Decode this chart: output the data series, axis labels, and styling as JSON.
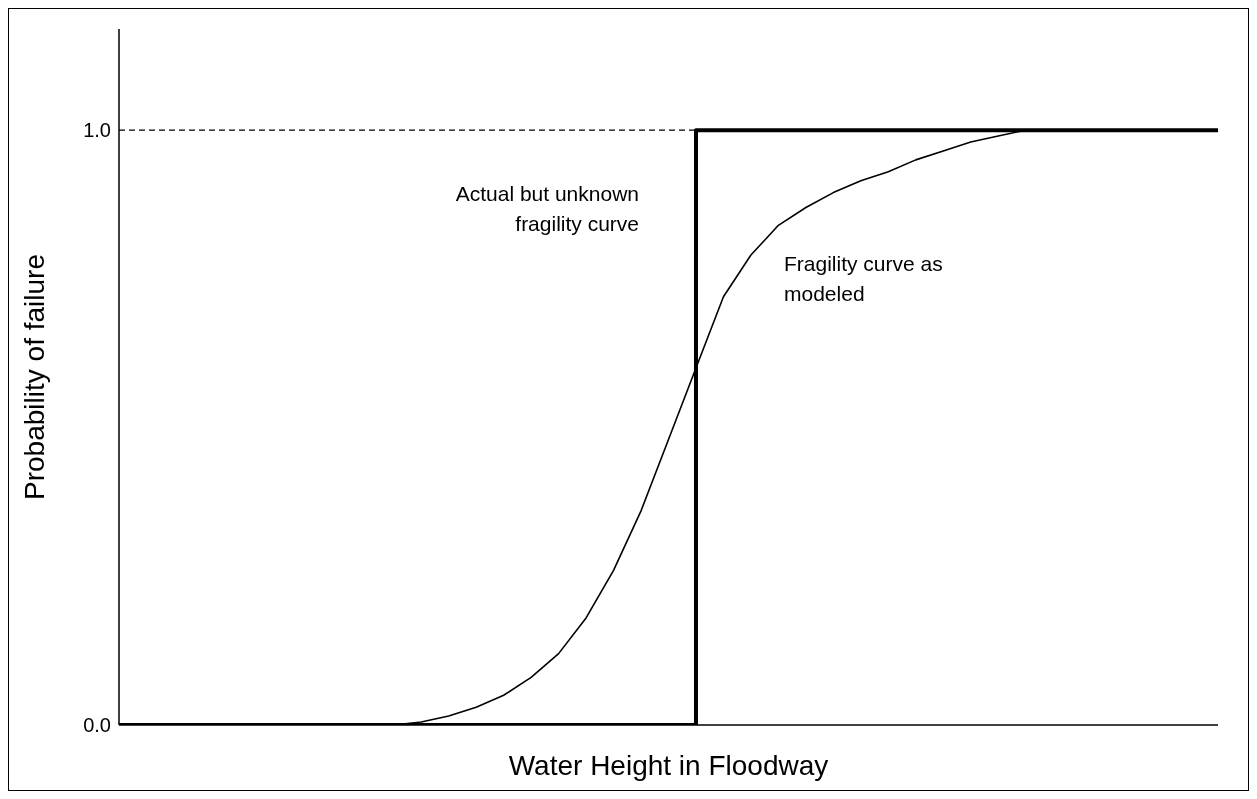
{
  "chart_data": {
    "type": "line",
    "xlabel": "Water Height in Floodway",
    "ylabel": "Probability of failure",
    "categories": [
      null,
      null,
      null,
      null,
      null,
      null,
      null,
      null,
      null,
      null,
      null,
      null,
      null,
      null,
      null,
      null,
      null,
      null,
      null,
      null,
      null,
      null,
      null,
      null,
      null,
      null,
      null,
      null,
      null,
      null,
      null,
      null,
      null,
      null,
      null,
      null,
      null,
      null,
      null,
      null,
      null
    ],
    "series": [
      {
        "type": "step",
        "color": "#000000",
        "values": [
          0,
          0,
          0,
          0,
          0,
          0,
          0,
          0,
          0,
          0,
          0,
          0,
          0,
          0,
          0,
          0,
          0,
          0,
          0,
          0,
          0,
          1,
          1,
          1,
          1,
          1,
          1,
          1,
          1,
          1,
          1,
          1,
          1,
          1,
          1,
          1,
          1,
          1,
          1,
          1,
          1
        ]
      },
      {
        "type": "line",
        "color": "#000000",
        "values": [
          null,
          null,
          null,
          null,
          null,
          null,
          null,
          null,
          null,
          null,
          0,
          0.005,
          0.015,
          0.03,
          0.05,
          0.08,
          0.12,
          0.18,
          0.26,
          0.36,
          0.48,
          0.6,
          0.72,
          0.79,
          0.84,
          0.87,
          0.895,
          0.915,
          0.93,
          0.95,
          0.965,
          0.98,
          0.99,
          1.0,
          null,
          null,
          null,
          null,
          null,
          null,
          null
        ]
      }
    ],
    "ylim": [
      0,
      1.17
    ],
    "yticks": [
      {
        "value": 0,
        "label": "0.0"
      },
      {
        "value": 1,
        "label": "1.0"
      }
    ],
    "ref_lines": [
      {
        "axis": "y",
        "value": 1,
        "line_style": "dashed",
        "color": "#000000"
      }
    ],
    "annotations": [
      "Actual but unknown fragility curve",
      "Fragility curve as modeled"
    ],
    "marker": "none",
    "grid": false,
    "legend": false
  }
}
